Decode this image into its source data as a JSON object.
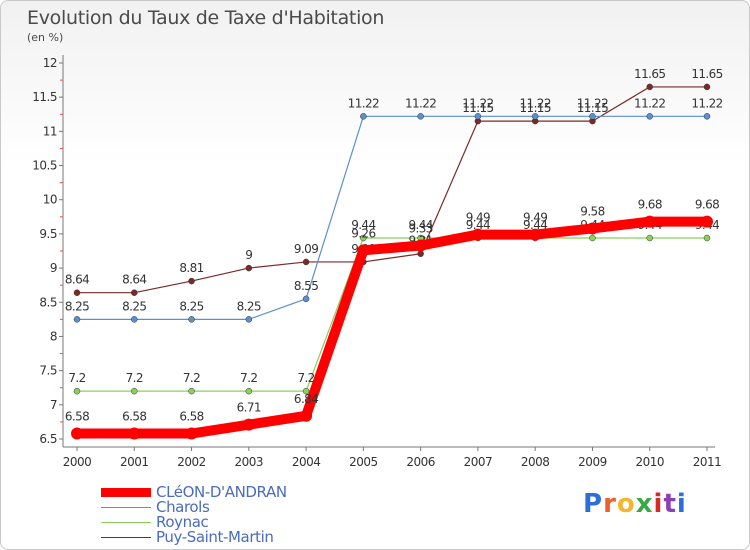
{
  "header": {
    "title": "Evolution du Taux de Taxe d'Habitation",
    "subtitle": "(en %)"
  },
  "logo": {
    "text": "Proxiti",
    "colors": [
      "#2c6fd6",
      "#e8632b",
      "#f2b632",
      "#3aa845",
      "#d42a2a",
      "#8a3fb5",
      "#2c6fd6"
    ]
  },
  "chart_data": {
    "type": "line",
    "title": "Evolution du Taux de Taxe d'Habitation",
    "subtitle": "(en %)",
    "xlabel": "",
    "ylabel": "",
    "x": [
      "2000",
      "2001",
      "2002",
      "2003",
      "2004",
      "2005",
      "2006",
      "2007",
      "2008",
      "2009",
      "2010",
      "2011"
    ],
    "ylim": [
      6.5,
      12
    ],
    "yticks": [
      "6.5",
      "7",
      "7.5",
      "8",
      "8.5",
      "9",
      "9.5",
      "10",
      "10.5",
      "11",
      "11.5",
      "12"
    ],
    "grid": false,
    "legend_position": "bottom-left",
    "series": [
      {
        "name": "CLéON-D'ANDRAN",
        "color": "#ff0000",
        "values": [
          6.58,
          6.58,
          6.58,
          6.71,
          6.84,
          9.26,
          9.33,
          9.49,
          9.49,
          9.58,
          9.68,
          9.68
        ],
        "labels": [
          "6.58",
          "6.58",
          "6.58",
          "6.71",
          "6.84",
          "9.26",
          "9.33",
          "9.49",
          "9.49",
          "9.58",
          "9.68",
          "9.68"
        ]
      },
      {
        "name": "Charols",
        "color": "#5b8fd0",
        "values": [
          8.25,
          8.25,
          8.25,
          8.25,
          8.55,
          11.22,
          11.22,
          11.22,
          11.22,
          11.22,
          11.22,
          11.22
        ],
        "labels": [
          "8.25",
          "8.25",
          "8.25",
          "8.25",
          "8.55",
          "11.22",
          "11.22",
          "11.22",
          "11.22",
          "11.22",
          "11.22",
          "11.22"
        ]
      },
      {
        "name": "Roynac",
        "color": "#8bd05a",
        "values": [
          7.2,
          7.2,
          7.2,
          7.2,
          7.2,
          9.44,
          9.44,
          9.44,
          9.44,
          9.44,
          9.44,
          9.44
        ],
        "labels": [
          "7.2",
          "7.2",
          "7.2",
          "7.2",
          "7.2",
          "9.44",
          "9.44",
          "9.44",
          "9.44",
          "9.44",
          "9.44",
          "9.44"
        ]
      },
      {
        "name": "Puy-Saint-Martin",
        "color": "#7a2a2a",
        "values": [
          8.64,
          8.64,
          8.81,
          9.0,
          9.09,
          9.09,
          9.21,
          11.15,
          11.15,
          11.15,
          11.65,
          11.65
        ],
        "labels": [
          "8.64",
          "8.64",
          "8.81",
          "9",
          "9.09",
          "9.09",
          "9.21",
          "11.15",
          "11.15",
          "11.15",
          "11.65",
          "11.65"
        ]
      }
    ]
  }
}
